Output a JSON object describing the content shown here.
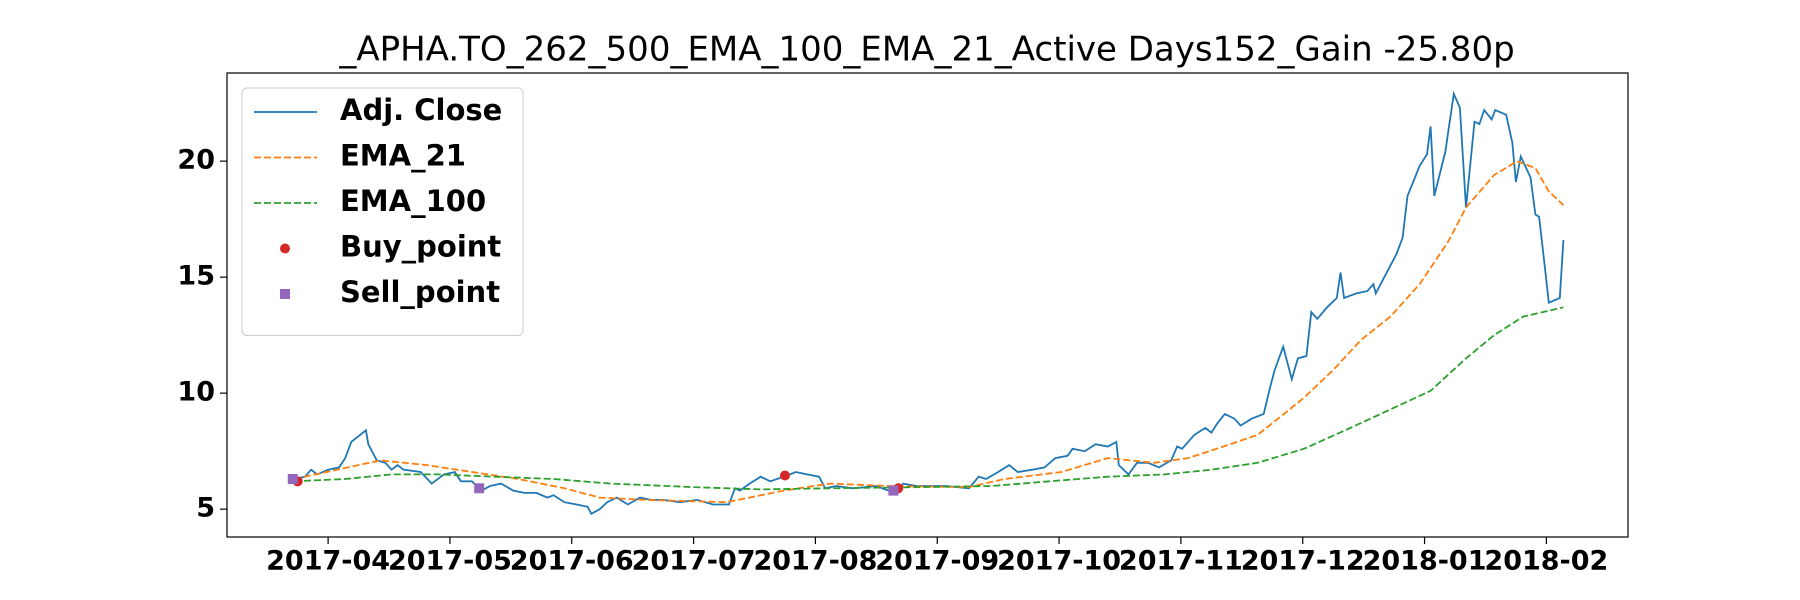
{
  "chart_data": {
    "type": "line",
    "title": "_APHA.TO_262_500_EMA_100_EMA_21_Active Days152_Gain -25.80p",
    "xlim": [
      -0.83,
      10.67
    ],
    "ylim": [
      3.8,
      23.8
    ],
    "yticks": [
      5,
      10,
      15,
      20
    ],
    "xticks": [
      {
        "value": 0,
        "label": "2017-04"
      },
      {
        "value": 1,
        "label": "2017-05"
      },
      {
        "value": 2,
        "label": "2017-06"
      },
      {
        "value": 3,
        "label": "2017-07"
      },
      {
        "value": 4,
        "label": "2017-08"
      },
      {
        "value": 5,
        "label": "2017-09"
      },
      {
        "value": 6,
        "label": "2017-10"
      },
      {
        "value": 7,
        "label": "2017-11"
      },
      {
        "value": 8,
        "label": "2017-12"
      },
      {
        "value": 9,
        "label": "2018-01"
      },
      {
        "value": 10,
        "label": "2018-02"
      }
    ],
    "grid": false,
    "legend": "upper left",
    "series": [
      {
        "name": "Adj. Close",
        "color": "#1f77b4",
        "linestyle": "solid",
        "marker": "none",
        "x": [
          -0.28,
          -0.19,
          -0.14,
          -0.09,
          0,
          0.09,
          0.14,
          0.19,
          0.31,
          0.33,
          0.4,
          0.47,
          0.52,
          0.57,
          0.62,
          0.76,
          0.85,
          0.95,
          1.04,
          1.09,
          1.18,
          1.26,
          1.33,
          1.42,
          1.52,
          1.61,
          1.71,
          1.8,
          1.85,
          1.94,
          2.04,
          2.13,
          2.16,
          2.23,
          2.29,
          2.37,
          2.46,
          2.56,
          2.65,
          2.75,
          2.89,
          3.03,
          3.16,
          3.29,
          3.34,
          3.38,
          3.46,
          3.55,
          3.63,
          3.74,
          3.84,
          3.93,
          4.03,
          4.08,
          4.17,
          4.31,
          4.5,
          4.6,
          4.67,
          4.72,
          4.83,
          5.07,
          5.26,
          5.34,
          5.4,
          5.5,
          5.59,
          5.66,
          5.78,
          5.88,
          5.97,
          6.07,
          6.11,
          6.21,
          6.3,
          6.4,
          6.47,
          6.49,
          6.57,
          6.64,
          6.73,
          6.82,
          6.92,
          6.97,
          7.01,
          7.11,
          7.2,
          7.25,
          7.3,
          7.36,
          7.44,
          7.49,
          7.58,
          7.68,
          7.73,
          7.77,
          7.84,
          7.91,
          7.96,
          8.03,
          8.07,
          8.12,
          8.2,
          8.28,
          8.31,
          8.34,
          8.44,
          8.53,
          8.58,
          8.6,
          8.67,
          8.77,
          8.82,
          8.86,
          8.96,
          9.02,
          9.05,
          9.08,
          9.17,
          9.24,
          9.29,
          9.34,
          9.41,
          9.45,
          9.49,
          9.55,
          9.58,
          9.67,
          9.72,
          9.75,
          9.79,
          9.87,
          9.91,
          9.94,
          9.99,
          10.02,
          10.11,
          10.14
        ],
        "values": [
          6.3,
          6.4,
          6.7,
          6.5,
          6.7,
          6.8,
          7.2,
          7.9,
          8.4,
          7.8,
          7.1,
          7.0,
          6.7,
          6.9,
          6.7,
          6.6,
          6.1,
          6.5,
          6.6,
          6.2,
          6.2,
          5.8,
          6.0,
          6.1,
          5.8,
          5.7,
          5.7,
          5.5,
          5.6,
          5.3,
          5.2,
          5.1,
          4.8,
          5.0,
          5.3,
          5.5,
          5.2,
          5.5,
          5.4,
          5.4,
          5.3,
          5.4,
          5.2,
          5.2,
          5.9,
          5.8,
          6.1,
          6.4,
          6.2,
          6.4,
          6.6,
          6.5,
          6.4,
          5.9,
          6.0,
          5.9,
          6.0,
          5.8,
          5.8,
          6.1,
          6.0,
          6.0,
          5.9,
          6.4,
          6.3,
          6.6,
          6.9,
          6.6,
          6.7,
          6.8,
          7.2,
          7.3,
          7.6,
          7.5,
          7.8,
          7.7,
          7.9,
          6.9,
          6.5,
          7.0,
          7.0,
          6.8,
          7.1,
          7.7,
          7.6,
          8.2,
          8.5,
          8.3,
          8.7,
          9.1,
          8.9,
          8.6,
          8.9,
          9.1,
          10.2,
          11.0,
          12.0,
          10.6,
          11.5,
          11.6,
          13.5,
          13.2,
          13.7,
          14.1,
          15.2,
          14.1,
          14.3,
          14.4,
          14.7,
          14.3,
          15.0,
          16.0,
          16.7,
          18.5,
          19.8,
          20.3,
          21.5,
          18.5,
          20.4,
          22.9,
          22.3,
          18.0,
          21.7,
          21.6,
          22.2,
          21.8,
          22.2,
          22.0,
          20.8,
          19.1,
          20.2,
          19.3,
          17.7,
          17.6,
          15.3,
          13.9,
          14.1,
          16.6
        ]
      },
      {
        "name": "EMA_21",
        "color": "#ff7f0e",
        "linestyle": "dashed",
        "marker": "none",
        "x": [
          -0.28,
          0.43,
          0.81,
          1.18,
          1.56,
          1.94,
          2.23,
          2.61,
          3.27,
          3.74,
          4.12,
          4.6,
          5.26,
          5.55,
          6.02,
          6.4,
          6.78,
          7.06,
          7.35,
          7.63,
          7.82,
          8.01,
          8.25,
          8.48,
          8.72,
          8.96,
          9.19,
          9.34,
          9.57,
          9.76,
          9.91,
          10.02,
          10.14
        ],
        "values": [
          6.3,
          7.1,
          6.9,
          6.6,
          6.3,
          5.9,
          5.5,
          5.4,
          5.3,
          5.8,
          6.1,
          6.0,
          5.95,
          6.3,
          6.6,
          7.2,
          7.0,
          7.2,
          7.7,
          8.2,
          9.0,
          9.8,
          11.0,
          12.3,
          13.3,
          14.7,
          16.5,
          18.0,
          19.4,
          20.0,
          19.7,
          18.7,
          18.1
        ]
      },
      {
        "name": "EMA_100",
        "color": "#2ca02c",
        "linestyle": "dashed",
        "marker": "none",
        "x": [
          -0.28,
          0.14,
          0.52,
          0.9,
          1.37,
          1.85,
          2.32,
          2.99,
          3.55,
          4.12,
          4.88,
          5.45,
          5.92,
          6.4,
          6.87,
          7.25,
          7.63,
          8.01,
          8.39,
          8.72,
          9.05,
          9.34,
          9.57,
          9.81,
          10.14
        ],
        "values": [
          6.2,
          6.3,
          6.5,
          6.5,
          6.4,
          6.3,
          6.1,
          5.95,
          5.85,
          5.9,
          5.95,
          6.0,
          6.2,
          6.4,
          6.5,
          6.7,
          7.0,
          7.6,
          8.5,
          9.3,
          10.1,
          11.5,
          12.5,
          13.3,
          13.7
        ]
      },
      {
        "name": "Buy_point",
        "color": "#d62728",
        "linestyle": "none",
        "marker": "circle",
        "x": [
          -0.25,
          3.75,
          4.68
        ],
        "values": [
          6.2,
          6.45,
          5.9
        ]
      },
      {
        "name": "Sell_point",
        "color": "#9467bd",
        "linestyle": "none",
        "marker": "square",
        "x": [
          -0.29,
          1.24,
          4.64
        ],
        "values": [
          6.3,
          5.9,
          5.8
        ]
      }
    ]
  }
}
